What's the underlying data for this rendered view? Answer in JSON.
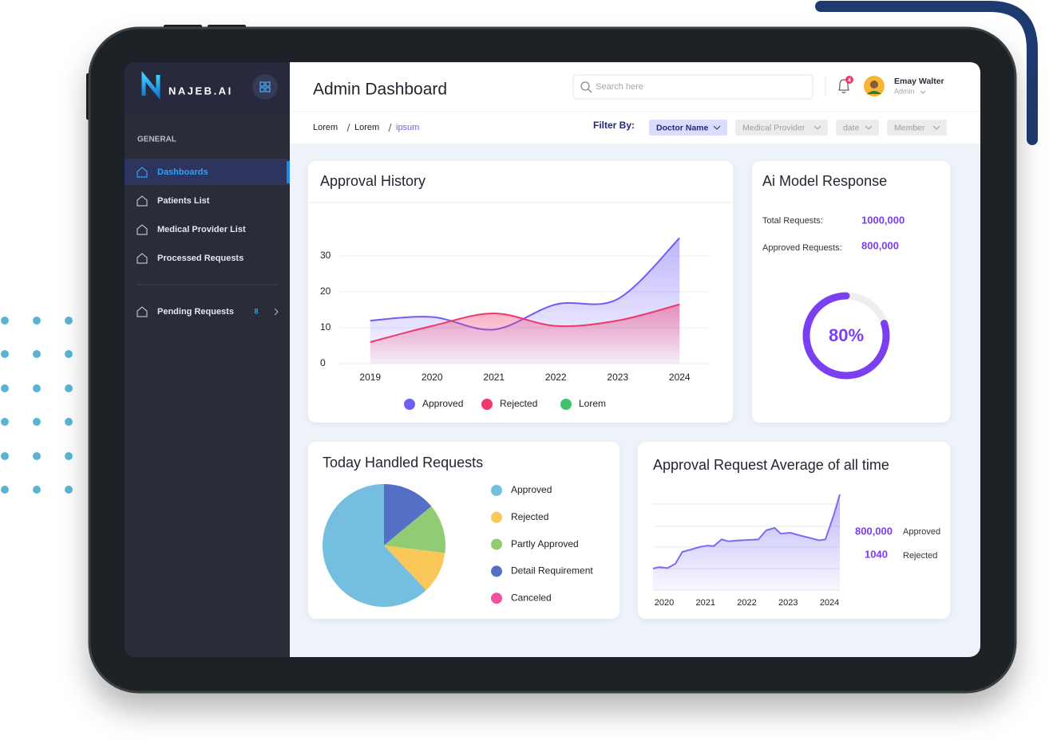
{
  "sidebar": {
    "brand": "NAJEB.AI",
    "section": "GENERAL",
    "items": [
      "Dashboards",
      "Patients List",
      "Medical Provider List",
      "Processed Requests"
    ],
    "pending": {
      "label": "Pending Requests",
      "count": 8
    }
  },
  "header": {
    "title": "Admin Dashboard",
    "search_placeholder": "Search here",
    "notification_count": 4,
    "user_name": "Emay Walter",
    "user_role": "Admin"
  },
  "breadcrumb": [
    "Lorem",
    "Lorem",
    "ipsum"
  ],
  "filters": {
    "label": "Filter By:",
    "options": [
      "Doctor Name",
      "Medical Provider",
      "date",
      "Member"
    ]
  },
  "approval_history": {
    "type": "area",
    "title": "Approval History",
    "categories": [
      "2019",
      "2020",
      "2021",
      "2022",
      "2023",
      "2024"
    ],
    "series": [
      {
        "name": "Approved",
        "color": "#6f5ef5",
        "values": [
          12,
          13,
          9.5,
          16.5,
          18,
          35
        ]
      },
      {
        "name": "Rejected",
        "color": "#f0386b",
        "values": [
          6,
          10.5,
          14,
          10.5,
          12,
          16.5
        ]
      },
      {
        "name": "Lorem",
        "color": "#3ec46d",
        "values": [
          null,
          null,
          null,
          null,
          null,
          null
        ]
      }
    ],
    "ylim": [
      0,
      43
    ],
    "yticks": [
      0,
      10,
      20,
      30
    ],
    "grid": true
  },
  "ai_model_response": {
    "title": "Ai Model Response",
    "total_label": "Total Requests:",
    "total_value": "1000,000",
    "approved_label": "Approved Requests:",
    "approved_value": "800,000",
    "gauge": {
      "type": "donut",
      "values": [
        80
      ],
      "value_labels": [
        "80%"
      ],
      "color": "#7b3ff2"
    }
  },
  "today_handled": {
    "type": "pie",
    "title": "Today Handled Requests",
    "categories": [
      "Approved",
      "Rejected",
      "Partly Approved",
      "Detail Requirement",
      "Canceled"
    ],
    "values": [
      62,
      11,
      13,
      14,
      0
    ],
    "colors": [
      "#74bfdf",
      "#fac858",
      "#91cc75",
      "#5470c6",
      "#f0529c"
    ]
  },
  "approval_average": {
    "type": "area",
    "title": "Approval Request Average of all time",
    "x": [
      2019.73,
      2019.88,
      2020.08,
      2020.27,
      2020.44,
      2020.66,
      2020.85,
      2021.04,
      2021.2,
      2021.39,
      2021.55,
      2021.82,
      2022.09,
      2022.28,
      2022.47,
      2022.67,
      2022.82,
      2023.05,
      2023.25,
      2023.48,
      2023.75,
      2023.9,
      2024.1,
      2024.25
    ],
    "values": [
      22.5,
      24,
      23,
      27.5,
      40,
      42.5,
      45,
      46.5,
      46,
      53,
      51,
      52,
      52.5,
      53,
      62.5,
      65,
      59,
      60,
      57.5,
      55,
      52,
      53,
      78,
      100
    ],
    "xlim": [
      2019.73,
      2024.25
    ],
    "xticks": [
      2020,
      2021,
      2022,
      2023,
      2024
    ],
    "ylim": [
      0,
      100
    ],
    "color": "#7b6cf6",
    "stats": [
      {
        "value": "800,000",
        "label": "Approved"
      },
      {
        "value": "1040",
        "label": "Rejected"
      }
    ]
  }
}
